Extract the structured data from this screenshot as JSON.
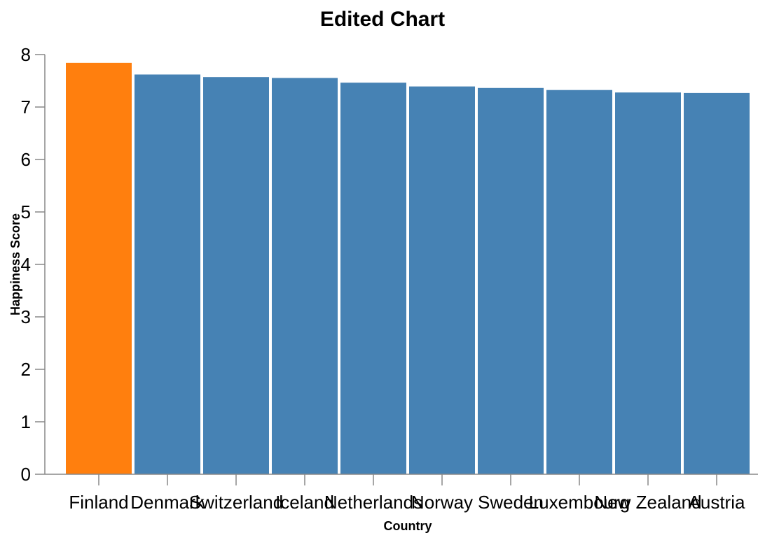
{
  "chart_data": {
    "type": "bar",
    "title": "Edited Chart",
    "xlabel": "Country",
    "ylabel": "Happiness Score",
    "categories": [
      "Finland",
      "Denmark",
      "Switzerland",
      "Iceland",
      "Netherlands",
      "Norway",
      "Sweden",
      "Luxembourg",
      "New Zealand",
      "Austria"
    ],
    "values": [
      7.842,
      7.62,
      7.571,
      7.554,
      7.464,
      7.392,
      7.363,
      7.324,
      7.277,
      7.268
    ],
    "highlight_index": 0,
    "colors": {
      "default": "#4682b4",
      "highlight": "#ff7f0e"
    },
    "ylim": [
      0,
      8
    ],
    "yticks": [
      0,
      1,
      2,
      3,
      4,
      5,
      6,
      7,
      8
    ],
    "grid": false,
    "legend": "none"
  }
}
